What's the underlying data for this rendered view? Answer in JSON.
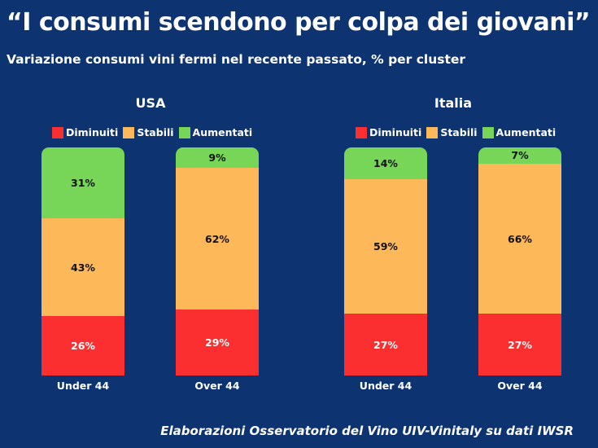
{
  "chart_data": {
    "type": "bar",
    "stacked": true,
    "title": "“I consumi scendono per colpa dei giovani”",
    "subtitle": "Variazione consumi vini fermi nel recente passato, % per cluster",
    "source": "Elaborazioni Osservatorio del Vino UIV-Vinitaly su dati IWSR",
    "legend": [
      "Diminuiti",
      "Stabili",
      "Aumentati"
    ],
    "colors": {
      "Diminuiti": "#fb2f2f",
      "Stabili": "#fdb85a",
      "Aumentati": "#77d657"
    },
    "panels": [
      {
        "title": "USA",
        "categories": [
          "Under 44",
          "Over 44"
        ],
        "series": [
          {
            "name": "Diminuiti",
            "values": [
              26,
              29
            ],
            "labels": [
              "26%",
              "29%"
            ]
          },
          {
            "name": "Stabili",
            "values": [
              43,
              62
            ],
            "labels": [
              "43%",
              "62%"
            ]
          },
          {
            "name": "Aumentati",
            "values": [
              31,
              9
            ],
            "labels": [
              "31%",
              "9%"
            ]
          }
        ]
      },
      {
        "title": "Italia",
        "categories": [
          "Under 44",
          "Over 44"
        ],
        "series": [
          {
            "name": "Diminuiti",
            "values": [
              27,
              27
            ],
            "labels": [
              "27%",
              "27%"
            ]
          },
          {
            "name": "Stabili",
            "values": [
              59,
              66
            ],
            "labels": [
              "59%",
              "66%"
            ]
          },
          {
            "name": "Aumentati",
            "values": [
              14,
              7
            ],
            "labels": [
              "14%",
              "7%"
            ]
          }
        ]
      }
    ],
    "ylim": [
      0,
      100
    ]
  }
}
